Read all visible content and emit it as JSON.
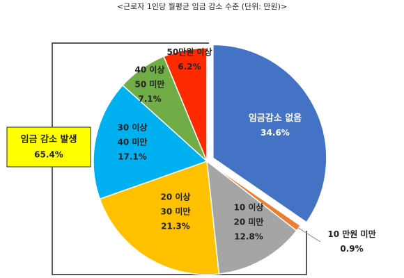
{
  "chart_data": {
    "type": "pie",
    "title": "<근로자 1인당 월평균 임금 감소 수준 (단위: 만원)>",
    "categories": [
      [
        "임금감소 없음"
      ],
      [
        "10 만원 미만"
      ],
      [
        "10 이상",
        "20 미만"
      ],
      [
        "20 이상",
        "30 미만"
      ],
      [
        "30 이상",
        "40 미만"
      ],
      [
        "40 이상",
        "50 미만"
      ],
      [
        "50만원 이상"
      ]
    ],
    "values": [
      34.6,
      0.9,
      12.8,
      21.3,
      17.1,
      7.1,
      6.2
    ],
    "value_labels": [
      "34.6%",
      "0.9%",
      "12.8%",
      "21.3%",
      "17.1%",
      "7.1%",
      "6.2%"
    ],
    "colors": [
      "#4472c4",
      "#ed7d31",
      "#a5a5a5",
      "#ffc000",
      "#00b0f0",
      "#70ad47",
      "#ff2a00"
    ],
    "annotation": {
      "text": "임금 감소 발생",
      "value": 65.4,
      "value_label": "65.4%"
    }
  }
}
